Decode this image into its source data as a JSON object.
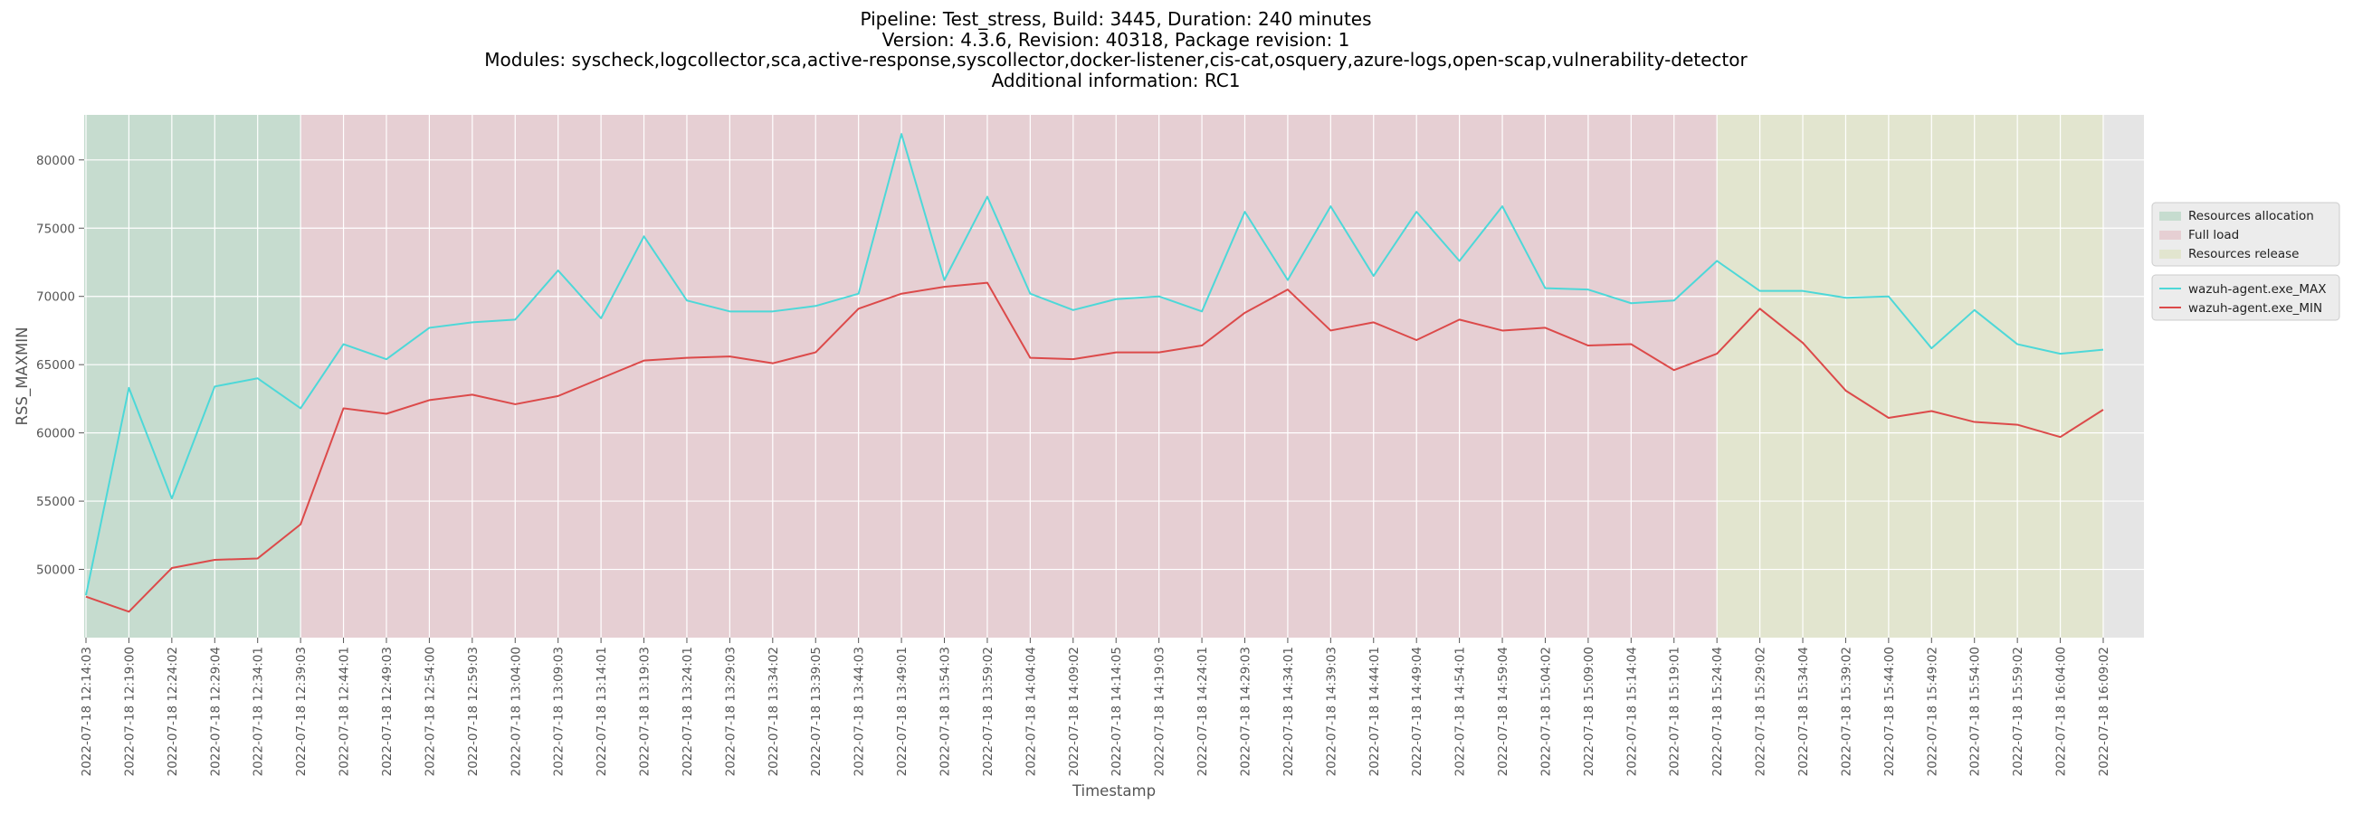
{
  "title_lines": [
    "Pipeline: Test_stress, Build: 3445, Duration: 240 minutes",
    "Version: 4.3.6, Revision: 40318, Package revision: 1",
    "Modules: syscheck,logcollector,sca,active-response,syscollector,docker-listener,cis-cat,osquery,azure-logs,open-scap,vulnerability-detector",
    "Additional information: RC1"
  ],
  "chart_data": {
    "type": "line",
    "xlabel": "Timestamp",
    "ylabel": "RSS_MAXMIN",
    "ylim": [
      45000,
      83300
    ],
    "yticks": [
      50000,
      55000,
      60000,
      65000,
      70000,
      75000,
      80000
    ],
    "grid": true,
    "legend_placement": "right-outside",
    "categories": [
      "2022-07-18 12:14:03",
      "2022-07-18 12:19:00",
      "2022-07-18 12:24:02",
      "2022-07-18 12:29:04",
      "2022-07-18 12:34:01",
      "2022-07-18 12:39:03",
      "2022-07-18 12:44:01",
      "2022-07-18 12:49:03",
      "2022-07-18 12:54:00",
      "2022-07-18 12:59:03",
      "2022-07-18 13:04:00",
      "2022-07-18 13:09:03",
      "2022-07-18 13:14:01",
      "2022-07-18 13:19:03",
      "2022-07-18 13:24:01",
      "2022-07-18 13:29:03",
      "2022-07-18 13:34:02",
      "2022-07-18 13:39:05",
      "2022-07-18 13:44:03",
      "2022-07-18 13:49:01",
      "2022-07-18 13:54:03",
      "2022-07-18 13:59:02",
      "2022-07-18 14:04:04",
      "2022-07-18 14:09:02",
      "2022-07-18 14:14:05",
      "2022-07-18 14:19:03",
      "2022-07-18 14:24:01",
      "2022-07-18 14:29:03",
      "2022-07-18 14:34:01",
      "2022-07-18 14:39:03",
      "2022-07-18 14:44:01",
      "2022-07-18 14:49:04",
      "2022-07-18 14:54:01",
      "2022-07-18 14:59:04",
      "2022-07-18 15:04:02",
      "2022-07-18 15:09:00",
      "2022-07-18 15:14:04",
      "2022-07-18 15:19:01",
      "2022-07-18 15:24:04",
      "2022-07-18 15:29:02",
      "2022-07-18 15:34:04",
      "2022-07-18 15:39:02",
      "2022-07-18 15:44:00",
      "2022-07-18 15:49:02",
      "2022-07-18 15:54:00",
      "2022-07-18 15:59:02",
      "2022-07-18 16:04:00",
      "2022-07-18 16:09:02"
    ],
    "series": [
      {
        "name": "wazuh-agent.exe_MAX",
        "color": "#4dd8d8",
        "values": [
          48100,
          63300,
          55200,
          63400,
          64000,
          61800,
          66500,
          65400,
          67700,
          68100,
          68300,
          71900,
          68400,
          74400,
          69700,
          68900,
          68900,
          69300,
          70200,
          81900,
          71200,
          77300,
          70200,
          69000,
          69800,
          70000,
          68900,
          76200,
          71200,
          76600,
          71500,
          76200,
          72600,
          76600,
          70600,
          70500,
          69500,
          69700,
          72600,
          70400,
          70400,
          69900,
          70000,
          66200,
          69000,
          66500,
          65800,
          66100
        ]
      },
      {
        "name": "wazuh-agent.exe_MIN",
        "color": "#dc4a4a",
        "values": [
          48000,
          46900,
          50100,
          50700,
          50800,
          53300,
          61800,
          61400,
          62400,
          62800,
          62100,
          62700,
          64000,
          65300,
          65500,
          65600,
          65100,
          65900,
          69100,
          70200,
          70700,
          71000,
          65500,
          65400,
          65900,
          65900,
          66400,
          68800,
          70500,
          67500,
          68100,
          66800,
          68300,
          67500,
          67700,
          66400,
          66500,
          64600,
          65800,
          69100,
          66600,
          63100,
          61100,
          61600,
          60800,
          60600,
          59700,
          61700
        ]
      }
    ],
    "bands": [
      {
        "name": "Resources allocation",
        "start_index": 0,
        "end_index": 5,
        "color": "#c6dccf"
      },
      {
        "name": "Full load",
        "start_index": 5,
        "end_index": 38,
        "color": "#e6cfd3"
      },
      {
        "name": "Resources release",
        "start_index": 38,
        "end_index": 47,
        "color": "#e2e5cf"
      }
    ],
    "colors": {
      "plot_background": "#e5e5e5",
      "grid": "#ffffff"
    }
  }
}
